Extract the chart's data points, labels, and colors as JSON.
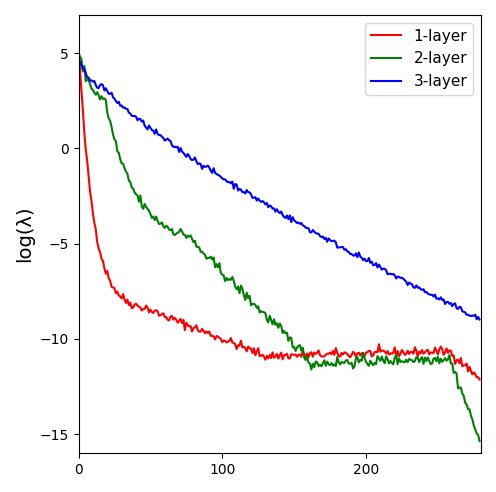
{
  "title": "",
  "ylabel": "log(λ)",
  "xlabel": "",
  "xlim": [
    0,
    280
  ],
  "ylim": [
    -16,
    7
  ],
  "yticks": [
    -15,
    -10,
    -5,
    0,
    5
  ],
  "xticks": [
    0,
    100,
    200
  ],
  "legend_labels": [
    "1-layer",
    "2-layer",
    "3-layer"
  ],
  "colors": [
    "red",
    "green",
    "blue"
  ],
  "line_width": 1.5,
  "figsize": [
    4.96,
    4.92
  ],
  "dpi": 100
}
